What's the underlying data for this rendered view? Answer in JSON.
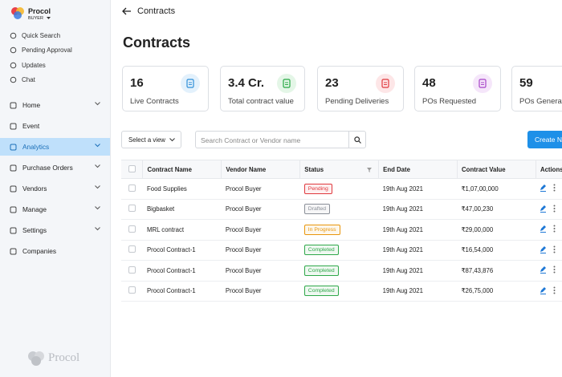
{
  "header": {
    "brand": "Procol",
    "role": "BUYER"
  },
  "quick_links": [
    "Quick Search",
    "Pending Approval",
    "Updates",
    "Chat"
  ],
  "nav": [
    {
      "label": "Home",
      "expandable": true
    },
    {
      "label": "Event",
      "expandable": false
    },
    {
      "label": "Analytics",
      "expandable": true,
      "active": true
    },
    {
      "label": "Purchase Orders",
      "expandable": true
    },
    {
      "label": "Vendors",
      "expandable": true
    },
    {
      "label": "Manage",
      "expandable": true
    },
    {
      "label": "Settings",
      "expandable": true
    },
    {
      "label": "Companies",
      "expandable": false
    }
  ],
  "footer_brand": "Procol",
  "page": {
    "back_title": "Contracts",
    "heading": "Contracts"
  },
  "stats": [
    {
      "value": "16",
      "label": "Live Contracts",
      "color": "#2f8fd8",
      "bg": "#e3f1fc"
    },
    {
      "value": "3.4 Cr.",
      "label": "Total contract value",
      "color": "#27a844",
      "bg": "#e4f6e7"
    },
    {
      "value": "23",
      "label": "Pending Deliveries",
      "color": "#e0393e",
      "bg": "#fde6e7"
    },
    {
      "value": "48",
      "label": "POs Requested",
      "color": "#a644c8",
      "bg": "#f5e6fa"
    },
    {
      "value": "59",
      "label": "POs Generated",
      "color": "#a644c8",
      "bg": "#f5e6fa"
    }
  ],
  "controls": {
    "view_select": "Select a view",
    "search_placeholder": "Search Contract or Vendor name",
    "create_button": "Create New"
  },
  "table": {
    "columns": [
      "Contract Name",
      "Vendor Name",
      "Status",
      "End Date",
      "Contract Value",
      "Actions"
    ],
    "rows": [
      {
        "contract": "Food Supplies",
        "vendor": "Procol Buyer",
        "status": "Pending",
        "status_color": "#e0393e",
        "end_date": "19th Aug 2021",
        "value": "₹1,07,00,000"
      },
      {
        "contract": "Bigbasket",
        "vendor": "Procol Buyer",
        "status": "Drafted",
        "status_color": "#8a8f98",
        "end_date": "19th Aug 2021",
        "value": "₹47,00,230"
      },
      {
        "contract": "MRL contract",
        "vendor": "Procol Buyer",
        "status": "In Progress",
        "status_color": "#e8960c",
        "end_date": "19th Aug 2021",
        "value": "₹29,00,000"
      },
      {
        "contract": "Procol Contract-1",
        "vendor": "Procol Buyer",
        "status": "Completed",
        "status_color": "#2fa84a",
        "end_date": "19th Aug 2021",
        "value": "₹16,54,000"
      },
      {
        "contract": "Procol Contract-1",
        "vendor": "Procol Buyer",
        "status": "Completed",
        "status_color": "#2fa84a",
        "end_date": "19th Aug 2021",
        "value": "₹87,43,876"
      },
      {
        "contract": "Procol Contract-1",
        "vendor": "Procol Buyer",
        "status": "Completed",
        "status_color": "#2fa84a",
        "end_date": "19th Aug 2021",
        "value": "₹26,75,000"
      }
    ]
  }
}
